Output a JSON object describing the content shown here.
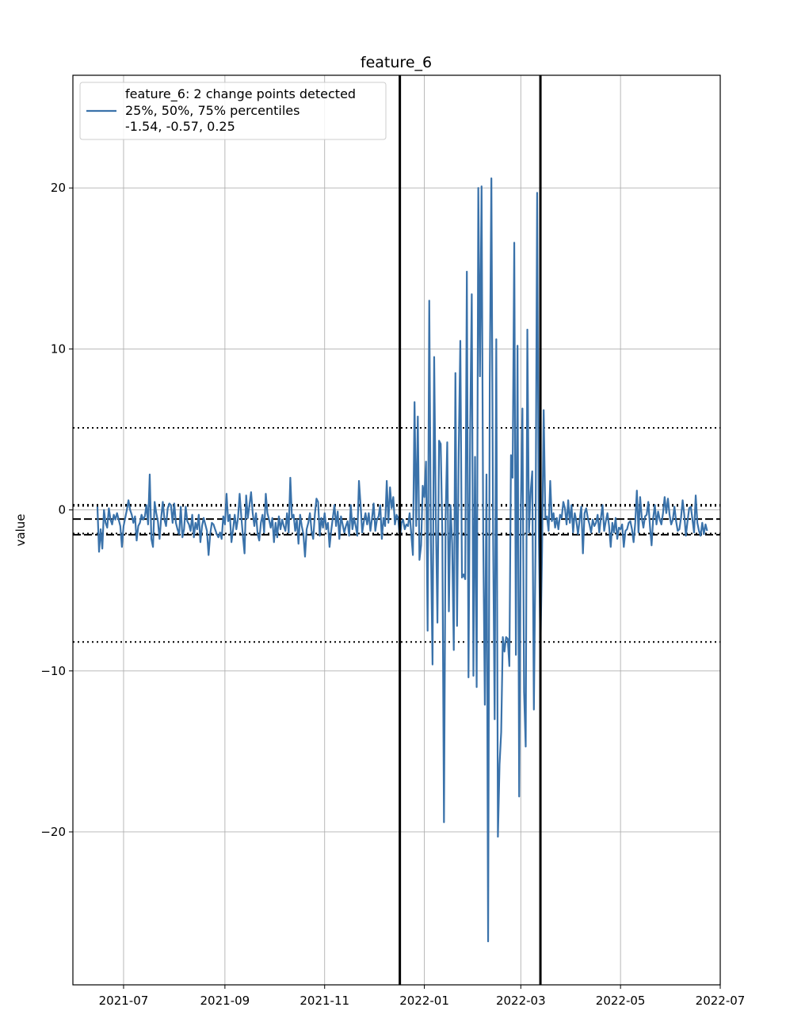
{
  "chart_data": {
    "type": "line",
    "title": "feature_6",
    "xlabel": "",
    "ylabel": "value",
    "grid": true,
    "legend_position": "top-left",
    "legend": {
      "line1": "feature_6: 2 change points detected",
      "line2": "25%, 50%, 75% percentiles",
      "line3": "-1.54, -0.57, 0.25"
    },
    "xlim": [
      "2021-05-31",
      "2022-07-01"
    ],
    "ylim": [
      -29.5,
      27.0
    ],
    "x_ticks": [
      "2021-07",
      "2021-09",
      "2021-11",
      "2022-01",
      "2022-03",
      "2022-05",
      "2022-07"
    ],
    "x_tick_dates": [
      "2021-07-01",
      "2021-09-01",
      "2021-11-01",
      "2022-01-01",
      "2022-03-01",
      "2022-05-01",
      "2022-07-01"
    ],
    "y_ticks": [
      20,
      10,
      0,
      -10,
      -20
    ],
    "y_tick_labels": [
      "20",
      "10",
      "0",
      "−10",
      "−20"
    ],
    "percentiles": {
      "p25": -1.54,
      "p50": -0.57,
      "p75": 0.25
    },
    "reference_lines": {
      "upper_dotted": 5.1,
      "lower_dotted": -8.2
    },
    "change_points": [
      "2021-12-17",
      "2022-03-13"
    ],
    "colors": {
      "series": "#3a72aa",
      "reference": "#000000",
      "grid": "#b0b0b0"
    },
    "series": [
      {
        "x_start": "2021-06-15",
        "x_step_days": 1,
        "values": [
          0.2,
          -2.6,
          -1.2,
          -2.4,
          0.0,
          -0.8,
          -1.1,
          0.1,
          -0.6,
          -0.9,
          -0.3,
          -0.6,
          -0.2,
          -0.6,
          -1.0,
          -2.3,
          -1.0,
          -0.5,
          0.0,
          0.6,
          0.0,
          -0.3,
          -0.8,
          -0.4,
          -1.9,
          -1.0,
          -0.8,
          -0.3,
          -0.6,
          -0.4,
          0.3,
          -0.9,
          2.2,
          -1.8,
          -2.3,
          0.5,
          -0.2,
          -0.7,
          -1.8,
          -0.5,
          0.5,
          -0.6,
          -1.0,
          0.1,
          0.4,
          0.3,
          -0.8,
          0.4,
          -0.8,
          -1.2,
          -1.5,
          0.2,
          -1.7,
          -1.2,
          0.2,
          -0.7,
          -0.9,
          -1.3,
          -0.3,
          -1.7,
          -0.8,
          -1.2,
          -0.3,
          -2.0,
          -1.0,
          -0.5,
          -0.9,
          -1.3,
          -2.8,
          -1.5,
          -0.8,
          -0.9,
          -1.2,
          -1.5,
          -1.7,
          -1.4,
          -1.8,
          -0.4,
          -0.9,
          1.0,
          -0.7,
          -0.3,
          -2.0,
          -1.2,
          -0.3,
          -1.2,
          -0.5,
          1.0,
          -0.4,
          -1.6,
          -2.7,
          0.9,
          -0.5,
          0.3,
          1.1,
          -0.2,
          -1.0,
          -0.2,
          -1.5,
          -1.9,
          -0.8,
          -0.3,
          -1.4,
          1.0,
          -0.2,
          -0.6,
          -1.1,
          -0.5,
          -2.0,
          -0.8,
          -1.7,
          -0.4,
          -1.2,
          -0.6,
          -1.0,
          -1.3,
          -0.2,
          -1.4,
          2.0,
          -0.5,
          -0.3,
          -1.3,
          -0.6,
          -2.1,
          -0.3,
          -1.0,
          -1.5,
          -2.9,
          -1.2,
          -0.8,
          -0.2,
          -1.3,
          -1.8,
          -0.3,
          0.7,
          0.5,
          -1.6,
          -0.5,
          -1.1,
          -0.2,
          -1.2,
          -0.8,
          -2.3,
          -1.3,
          -0.5,
          0.3,
          -1.0,
          -0.1,
          -1.8,
          -0.4,
          -0.9,
          -1.4,
          -1.0,
          -0.7,
          -1.6,
          0.3,
          -1.2,
          -0.5,
          -1.0,
          -1.6,
          1.8,
          0.3,
          -1.4,
          -0.7,
          -0.2,
          -0.9,
          -0.2,
          -1.3,
          -0.5,
          0.4,
          -1.3,
          -0.6,
          -0.4,
          0.3,
          -1.8,
          -0.5,
          -1.0,
          1.8,
          -0.8,
          1.4,
          0.1,
          0.8,
          -0.9,
          -0.3,
          -0.5,
          -1.8,
          -0.8,
          -0.6,
          -1.2,
          -0.9,
          -1.0,
          -0.2,
          -1.5,
          -2.8,
          6.7,
          -1.0,
          5.8,
          -3.1,
          -2.2,
          1.5,
          0.8,
          3.0,
          -7.5,
          13.0,
          -2.0,
          -9.6,
          9.5,
          -0.3,
          -7.0,
          4.3,
          4.1,
          -1.5,
          -19.4,
          -0.5,
          4.2,
          -6.3,
          0.3,
          -2.1,
          -8.7,
          8.5,
          -7.2,
          3.5,
          10.5,
          -4.2,
          -4.0,
          -4.3,
          14.8,
          -10.4,
          4.7,
          13.4,
          -10.3,
          3.3,
          -11.0,
          20.0,
          8.3,
          20.1,
          -1.4,
          -12.1,
          2.2,
          -26.8,
          7.8,
          20.6,
          -0.8,
          -13.0,
          10.6,
          -20.3,
          -15.8,
          -13.8,
          -7.9,
          -8.8,
          -7.9,
          -8.0,
          -9.7,
          3.4,
          2.0,
          16.6,
          -9.0,
          10.2,
          -17.8,
          -0.1,
          6.3,
          -11.3,
          -14.7,
          11.2,
          -1.4,
          1.1,
          2.4,
          -12.4,
          -2.4,
          19.7,
          -1.2,
          -8.7,
          -2.6,
          6.2,
          -0.5,
          -0.4,
          -1.3,
          1.8,
          -0.7,
          -0.2,
          -1.1,
          -0.5,
          -1.2,
          -0.3,
          -0.5,
          0.5,
          0.1,
          -0.9,
          0.6,
          -0.8,
          0.3,
          -1.4,
          -0.2,
          -0.7,
          -1.5,
          -0.6,
          0.2,
          -2.7,
          -0.2,
          0.1,
          -0.5,
          -0.9,
          -1.4,
          -0.6,
          -1.0,
          -0.8,
          -0.3,
          -1.4,
          -0.5,
          0.3,
          -1.3,
          -0.7,
          -0.2,
          -1.0,
          -2.3,
          -0.8,
          -1.4,
          -0.5,
          -1.8,
          -1.1,
          -1.2,
          -0.9,
          -2.3,
          -1.3,
          -1.2,
          -0.8,
          -0.7,
          -1.2,
          -2.0,
          -0.8,
          1.2,
          -1.4,
          0.8,
          -0.5,
          -1.1,
          -0.4,
          -0.3,
          0.5,
          -1.0,
          -2.2,
          -0.5,
          0.3,
          -0.9,
          -0.1,
          -0.6,
          -0.9,
          -0.2,
          0.8,
          -0.2,
          0.7,
          -0.3,
          -0.9,
          -0.6,
          0.2,
          -0.7,
          -1.3,
          -1.2,
          -0.5,
          0.6,
          -0.3,
          -1.6,
          -0.7,
          0.1,
          0.2,
          -0.6,
          -1.4,
          0.9,
          -0.8,
          -1.3,
          -1.6,
          -0.8,
          -1.5,
          -0.9,
          -1.3
        ]
      }
    ]
  }
}
